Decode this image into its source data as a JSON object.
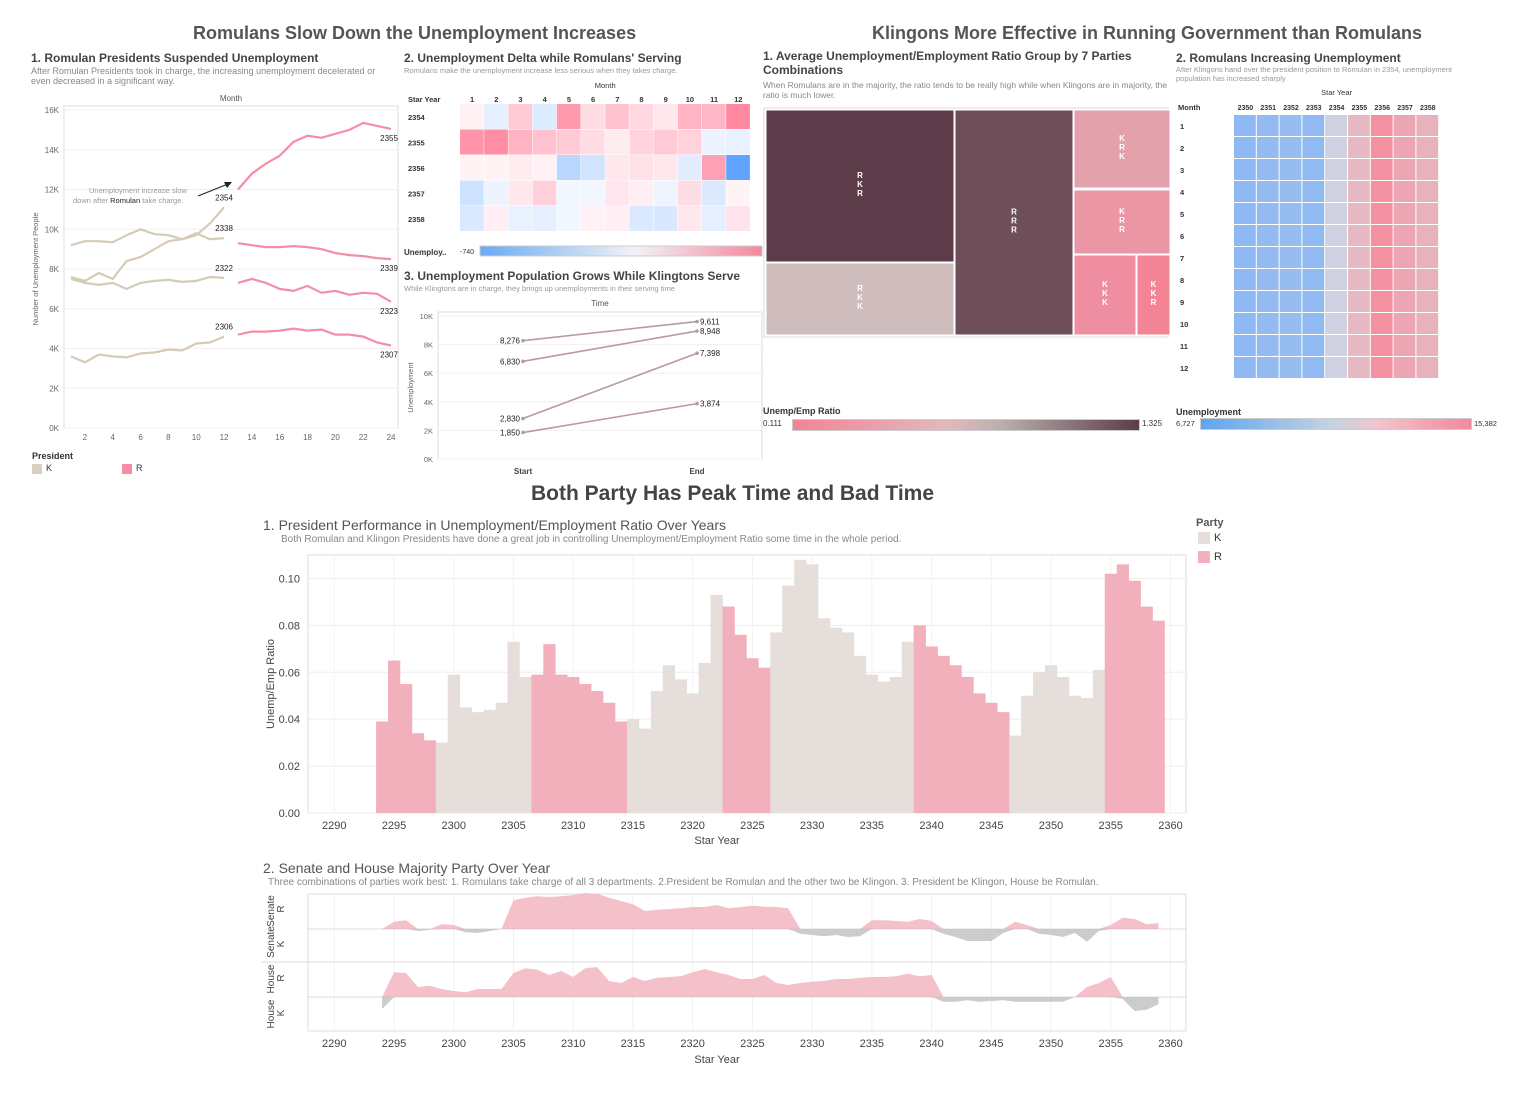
{
  "titles": {
    "left": "Romulans Slow Down the Unemployment Increases",
    "right": "Klingons More Effective in Running Government than Romulans",
    "bottom": "Both Party Has Peak Time and Bad Time"
  },
  "colors": {
    "romulan": "#f4a7b3",
    "klingon": "#d9cfc0",
    "line_r": "#f48ea4",
    "line_k": "#d6cbb8",
    "ratio_r": "#f1b0bb",
    "ratio_k": "#e6deda",
    "dark": "#5a3a45"
  },
  "p1": {
    "title": "1. Romulan Presidents Suspended Unemployment",
    "subtitle": "After Romulan Presidents took in charge, the increasing unemployment decelerated or even decreased in a significant way.",
    "x_header": "Month",
    "y_label": "Number of Unemployment People",
    "annotation_1": "Unemployment increase slow",
    "annotation_2": "down after",
    "annotation_bold": "Romulan",
    "annotation_3": "take charge.",
    "legend_title": "President",
    "legend": [
      "K",
      "R"
    ]
  },
  "p2": {
    "title": "2. Unemployment Delta while Romulans' Serving",
    "subtitle": "Romulans make the unemployment increase less serious when they takes charge.",
    "month_header": "Month",
    "row_header": "Star Year",
    "legend_label": "Unemploy..",
    "legend_min": "-740"
  },
  "p3": {
    "title": "3. Unemployment Population Grows While Klingtons Serve",
    "subtitle": "While Klingtons are in charge, they brings up unemployments in their serving time",
    "x_header": "Time",
    "y_label": "Unemployment"
  },
  "p4": {
    "title_1": "1. Average Unemployment/Employment Ratio Group by 7 Parties",
    "title_2": "Combinations",
    "subtitle": "When Romulans are in the majority, the ratio tends to be really high while when Klingons are in majority, the ratio is much lower.",
    "legend_label": "Unemp/Emp Ratio",
    "legend_min": "0.111",
    "legend_max": "1.325",
    "cells": [
      {
        "label": [
          "R",
          "K",
          "R"
        ],
        "color": "#5c3c48"
      },
      {
        "label": [
          "R",
          "K",
          "K"
        ],
        "color": "#cfbcbd"
      },
      {
        "label": [
          "R",
          "R",
          "R"
        ],
        "color": "#6e4e58"
      },
      {
        "label": [
          "K",
          "R",
          "K"
        ],
        "color": "#e3a1ab"
      },
      {
        "label": [
          "K",
          "R",
          "R"
        ],
        "color": "#ea96a4"
      },
      {
        "label": [
          "K",
          "K",
          "K"
        ],
        "color": "#ef8ea0"
      },
      {
        "label": [
          "K",
          "K",
          "R"
        ],
        "color": "#f28496"
      }
    ]
  },
  "p5": {
    "title": "2. Romulans Increasing Unemployment",
    "subtitle": "After Klingons hand over the president position to Romulan in 2354, unemployment population has increased sharply",
    "col_header": "Star Year",
    "row_header": "Month",
    "years": [
      "2350",
      "2351",
      "2352",
      "2353",
      "2354",
      "2355",
      "2356",
      "2357",
      "2358"
    ],
    "months": [
      "1",
      "2",
      "3",
      "4",
      "5",
      "6",
      "7",
      "8",
      "9",
      "10",
      "11",
      "12"
    ],
    "legend_label": "Unemployment",
    "legend_min": "6,727",
    "legend_max": "15,382"
  },
  "p6": {
    "title": "1. President Performance in Unemployment/Employment Ratio Over Years",
    "subtitle": "Both Romulan and Klingon Presidents have done a great job in controlling Unemployment/Employment Ratio some time in the whole period.",
    "y_label": "Unemp/Emp Ratio",
    "x_label": "Star Year",
    "legend_title": "Party",
    "legend": [
      "K",
      "R"
    ]
  },
  "p7": {
    "title": "2. Senate and House Majority Party Over Year",
    "subtitle": "Three combinations of parties work best: 1. Romulans take charge of all 3 departments. 2.President be Romulan and the other two be Klingon. 3. President be Klingon, House be Romulan.",
    "x_label": "Star Year",
    "row_labels": [
      "Senate",
      "R",
      "K",
      "House",
      "R",
      "K"
    ]
  },
  "chart_data": [
    {
      "type": "line",
      "title": "1. Romulan Presidents Suspended Unemployment",
      "xlabel": "Month",
      "ylabel": "Number of Unemployment People",
      "ylim": [
        0,
        16000
      ],
      "yticks": [
        "0K",
        "2K",
        "4K",
        "6K",
        "8K",
        "10K",
        "12K",
        "14K",
        "16K"
      ],
      "xticks": [
        2,
        4,
        6,
        8,
        10,
        12,
        14,
        16,
        18,
        20,
        22,
        24
      ],
      "series": [
        {
          "name": "2306",
          "party": "K",
          "x": [
            1,
            2,
            3,
            4,
            5,
            6,
            7,
            8,
            9,
            10,
            11,
            12
          ],
          "y": [
            3600,
            3300,
            3700,
            3600,
            3550,
            3750,
            3800,
            3950,
            3900,
            4250,
            4300,
            4600
          ]
        },
        {
          "name": "2307",
          "party": "R",
          "x": [
            13,
            14,
            15,
            16,
            17,
            18,
            19,
            20,
            21,
            22,
            23,
            24
          ],
          "y": [
            4700,
            4850,
            4850,
            4900,
            5000,
            4900,
            4950,
            4700,
            4700,
            4600,
            4300,
            4150
          ]
        },
        {
          "name": "2322",
          "party": "K",
          "x": [
            1,
            2,
            3,
            4,
            5,
            6,
            7,
            8,
            9,
            10,
            11,
            12
          ],
          "y": [
            7500,
            7300,
            7200,
            7300,
            7000,
            7300,
            7400,
            7450,
            7350,
            7400,
            7600,
            7550
          ]
        },
        {
          "name": "2323",
          "party": "R",
          "x": [
            13,
            14,
            15,
            16,
            17,
            18,
            19,
            20,
            21,
            22,
            23,
            24
          ],
          "y": [
            7300,
            7500,
            7300,
            7000,
            6900,
            7150,
            6800,
            6900,
            6700,
            6800,
            6750,
            6350
          ]
        },
        {
          "name": "2338",
          "party": "K",
          "x": [
            1,
            2,
            3,
            4,
            5,
            6,
            7,
            8,
            9,
            10,
            11,
            12
          ],
          "y": [
            7600,
            7400,
            7800,
            7500,
            8400,
            8600,
            9000,
            9400,
            9500,
            9800,
            9500,
            9550
          ]
        },
        {
          "name": "2339",
          "party": "R",
          "x": [
            13,
            14,
            15,
            16,
            17,
            18,
            19,
            20,
            21,
            22,
            23,
            24
          ],
          "y": [
            9300,
            9200,
            9100,
            9100,
            9150,
            9100,
            9000,
            8800,
            8700,
            8650,
            8550,
            8500
          ]
        },
        {
          "name": "2354",
          "party": "K",
          "x": [
            1,
            2,
            3,
            4,
            5,
            6,
            7,
            8,
            9,
            10,
            11,
            12
          ],
          "y": [
            9200,
            9400,
            9400,
            9350,
            9700,
            10000,
            9750,
            9700,
            9500,
            9700,
            10300,
            11100
          ]
        },
        {
          "name": "2355",
          "party": "R",
          "x": [
            13,
            14,
            15,
            16,
            17,
            18,
            19,
            20,
            21,
            22,
            23,
            24
          ],
          "y": [
            12000,
            12800,
            13300,
            13700,
            14400,
            14700,
            14600,
            14800,
            15000,
            15350,
            15200,
            15050
          ]
        }
      ]
    },
    {
      "type": "heatmap",
      "title": "2. Unemployment Delta while Romulans' Serving",
      "columns": [
        "1",
        "2",
        "3",
        "4",
        "5",
        "6",
        "7",
        "8",
        "9",
        "10",
        "11",
        "12"
      ],
      "rows": [
        "2354",
        "2355",
        "2356",
        "2357",
        "2358"
      ],
      "values": [
        [
          20,
          -80,
          200,
          -120,
          420,
          110,
          230,
          130,
          60,
          300,
          280,
          500
        ],
        [
          440,
          470,
          300,
          230,
          200,
          120,
          40,
          150,
          200,
          160,
          -40,
          -60
        ],
        [
          10,
          10,
          40,
          20,
          -300,
          -180,
          60,
          90,
          60,
          -100,
          380,
          -740
        ],
        [
          -190,
          -40,
          60,
          170,
          -20,
          -20,
          70,
          30,
          -30,
          110,
          -130,
          10
        ],
        [
          -130,
          30,
          -60,
          -80,
          -20,
          20,
          30,
          -130,
          -140,
          60,
          -80,
          80
        ]
      ],
      "legend_min": -740
    },
    {
      "type": "line",
      "title": "3. Unemployment Population Grows While Klingtons Serve",
      "xlabel": "Time",
      "ylabel": "Unemployment",
      "categories": [
        "Start",
        "End"
      ],
      "ylim": [
        0,
        10000
      ],
      "yticks": [
        "0K",
        "2K",
        "4K",
        "6K",
        "8K",
        "10K"
      ],
      "series": [
        {
          "values": [
            8276,
            9611
          ],
          "labels": [
            "8,276",
            "9,611"
          ]
        },
        {
          "values": [
            6830,
            8948
          ],
          "labels": [
            "6,830",
            "8,948"
          ]
        },
        {
          "values": [
            2830,
            7398
          ],
          "labels": [
            "2,830",
            "7,398"
          ]
        },
        {
          "values": [
            1850,
            3874
          ],
          "labels": [
            "1,850",
            "3,874"
          ]
        }
      ]
    },
    {
      "type": "heatmap",
      "title": "2. Romulans Increasing Unemployment",
      "columns": [
        "2350",
        "2351",
        "2352",
        "2353",
        "2354",
        "2355",
        "2356",
        "2357",
        "2358"
      ],
      "rows": [
        "1",
        "2",
        "3",
        "4",
        "5",
        "6",
        "7",
        "8",
        "9",
        "10",
        "11",
        "12"
      ],
      "column_levels": [
        0.05,
        0.08,
        0.1,
        0.06,
        0.45,
        0.65,
        0.95,
        0.8,
        0.7
      ],
      "legend_min": 6727,
      "legend_max": 15382
    },
    {
      "type": "bar",
      "title": "1. President Performance in Unemployment/Employment Ratio Over Years",
      "xlabel": "Star Year",
      "ylabel": "Unemp/Emp Ratio",
      "ylim": [
        0,
        0.11
      ],
      "yticks": [
        "0.00",
        "0.02",
        "0.04",
        "0.06",
        "0.08",
        "0.10"
      ],
      "xticks": [
        2290,
        2295,
        2300,
        2305,
        2310,
        2315,
        2320,
        2325,
        2330,
        2335,
        2340,
        2345,
        2350,
        2355,
        2360
      ],
      "x": [
        2294,
        2295,
        2296,
        2297,
        2298,
        2299,
        2300,
        2301,
        2302,
        2303,
        2304,
        2305,
        2306,
        2307,
        2308,
        2309,
        2310,
        2311,
        2312,
        2313,
        2314,
        2315,
        2316,
        2317,
        2318,
        2319,
        2320,
        2321,
        2322,
        2323,
        2324,
        2325,
        2326,
        2327,
        2328,
        2329,
        2330,
        2331,
        2332,
        2333,
        2334,
        2335,
        2336,
        2337,
        2338,
        2339,
        2340,
        2341,
        2342,
        2343,
        2344,
        2345,
        2346,
        2347,
        2348,
        2349,
        2350,
        2351,
        2352,
        2353,
        2354,
        2355,
        2356,
        2357,
        2358,
        2359
      ],
      "values": [
        0.039,
        0.065,
        0.055,
        0.034,
        0.031,
        0.03,
        0.059,
        0.045,
        0.043,
        0.044,
        0.047,
        0.073,
        0.058,
        0.059,
        0.072,
        0.059,
        0.058,
        0.055,
        0.052,
        0.047,
        0.039,
        0.04,
        0.036,
        0.052,
        0.063,
        0.057,
        0.051,
        0.064,
        0.093,
        0.088,
        0.076,
        0.066,
        0.062,
        0.077,
        0.097,
        0.108,
        0.106,
        0.083,
        0.079,
        0.077,
        0.067,
        0.059,
        0.056,
        0.058,
        0.073,
        0.08,
        0.071,
        0.067,
        0.063,
        0.058,
        0.051,
        0.047,
        0.043,
        0.033,
        0.05,
        0.06,
        0.063,
        0.058,
        0.05,
        0.049,
        0.061,
        0.102,
        0.106,
        0.099,
        0.088,
        0.082
      ],
      "party": [
        "R",
        "R",
        "R",
        "R",
        "R",
        "K",
        "K",
        "K",
        "K",
        "K",
        "K",
        "K",
        "K",
        "R",
        "R",
        "R",
        "R",
        "R",
        "R",
        "R",
        "R",
        "K",
        "K",
        "K",
        "K",
        "K",
        "K",
        "K",
        "K",
        "R",
        "R",
        "R",
        "R",
        "K",
        "K",
        "K",
        "K",
        "K",
        "K",
        "K",
        "K",
        "K",
        "K",
        "K",
        "K",
        "R",
        "R",
        "R",
        "R",
        "R",
        "R",
        "R",
        "R",
        "K",
        "K",
        "K",
        "K",
        "K",
        "K",
        "K",
        "K",
        "R",
        "R",
        "R",
        "R",
        "R"
      ]
    },
    {
      "type": "area",
      "title": "2. Senate and House Majority Party Over Year",
      "xlabel": "Star Year",
      "xticks": [
        2290,
        2295,
        2300,
        2305,
        2310,
        2315,
        2320,
        2325,
        2330,
        2335,
        2340,
        2345,
        2350,
        2355,
        2360
      ],
      "x": [
        2294,
        2295,
        2296,
        2297,
        2298,
        2299,
        2300,
        2301,
        2302,
        2303,
        2304,
        2305,
        2306,
        2307,
        2308,
        2309,
        2310,
        2311,
        2312,
        2313,
        2314,
        2315,
        2316,
        2317,
        2318,
        2319,
        2320,
        2321,
        2322,
        2323,
        2324,
        2325,
        2326,
        2327,
        2328,
        2329,
        2330,
        2331,
        2332,
        2333,
        2334,
        2335,
        2336,
        2337,
        2338,
        2339,
        2340,
        2341,
        2342,
        2343,
        2344,
        2345,
        2346,
        2347,
        2348,
        2349,
        2350,
        2351,
        2352,
        2353,
        2354,
        2355,
        2356,
        2357,
        2358,
        2359
      ],
      "senate": [
        0.0,
        0.18,
        0.22,
        -0.05,
        -0.02,
        0.12,
        0.1,
        -0.08,
        -0.1,
        -0.05,
        0.0,
        0.72,
        0.78,
        0.82,
        0.8,
        0.82,
        0.85,
        0.9,
        0.88,
        0.78,
        0.7,
        0.62,
        0.45,
        0.48,
        0.5,
        0.52,
        0.55,
        0.55,
        0.6,
        0.52,
        0.55,
        0.58,
        0.56,
        0.55,
        0.52,
        -0.12,
        -0.15,
        -0.18,
        -0.15,
        -0.2,
        -0.18,
        0.22,
        0.22,
        0.2,
        0.18,
        0.25,
        0.2,
        -0.12,
        -0.2,
        -0.3,
        -0.3,
        -0.3,
        -0.1,
        0.18,
        0.1,
        -0.12,
        -0.15,
        -0.2,
        -0.1,
        -0.32,
        -0.05,
        0.1,
        0.28,
        0.25,
        0.12,
        0.15
      ],
      "house": [
        -0.3,
        0.62,
        0.6,
        0.25,
        0.28,
        0.2,
        0.15,
        0.12,
        0.2,
        0.2,
        0.2,
        0.6,
        0.72,
        0.68,
        0.55,
        0.65,
        0.5,
        0.72,
        0.75,
        0.4,
        0.35,
        0.5,
        0.4,
        0.48,
        0.5,
        0.52,
        0.62,
        0.7,
        0.62,
        0.55,
        0.45,
        0.45,
        0.55,
        0.35,
        0.3,
        0.35,
        0.38,
        0.4,
        0.45,
        0.45,
        0.48,
        0.5,
        0.5,
        0.52,
        0.58,
        0.52,
        0.55,
        -0.12,
        -0.12,
        -0.08,
        -0.12,
        -0.1,
        -0.08,
        -0.12,
        -0.12,
        -0.12,
        -0.12,
        -0.12,
        0.0,
        0.25,
        0.35,
        0.5,
        -0.05,
        -0.35,
        -0.32,
        -0.18
      ]
    }
  ]
}
